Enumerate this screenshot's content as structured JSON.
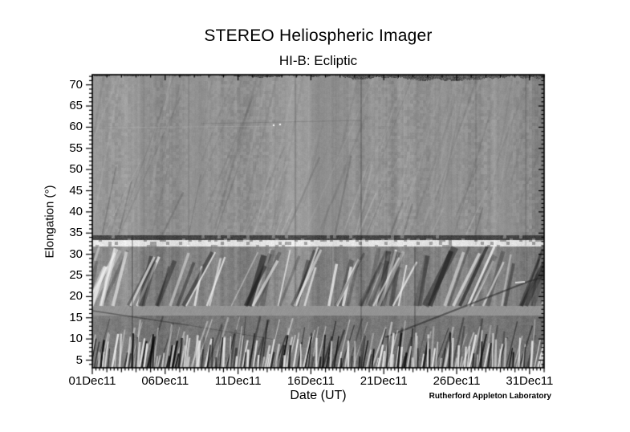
{
  "chart_data": {
    "type": "heatmap",
    "title": "STEREO Heliospheric Imager",
    "subtitle": "HI-B: Ecliptic",
    "xlabel": "Date (UT)",
    "ylabel": "Elongation (°)",
    "credit": "Rutherford Appleton Laboratory",
    "x_tick_labels": [
      "01Dec11",
      "06Dec11",
      "11Dec11",
      "16Dec11",
      "21Dec11",
      "26Dec11",
      "31Dec11"
    ],
    "x_tick_days": [
      0,
      5,
      10,
      15,
      20,
      25,
      30
    ],
    "x_range_days": [
      0,
      31
    ],
    "x_minor_tick_hours": 6,
    "y_tick_values": [
      5,
      10,
      15,
      20,
      25,
      30,
      35,
      40,
      45,
      50,
      55,
      60,
      65,
      70
    ],
    "y_minor_tick_deg": 1,
    "y_range_deg": [
      3.2,
      72.4
    ],
    "grid": "off",
    "legend": "none",
    "image_description": "Grayscale running-difference time-elongation J-map from the STEREO HI-B heliospheric imager along the ecliptic for December 2011.",
    "features": [
      "bright stationary horizontal band near 33 deg elongation spanning all dates",
      "dark horizontal lane near 34-35 deg elongation just above the bright band",
      "instrument field-of-view boundary near 17 deg elongation with calm hatched strip below it",
      "dense fan of bright and dark outflow tracks below 17 deg leaning toward later dates with height",
      "alternating bright/dark transient (CME/solar-wind) tracks between 18 and 33 deg",
      "faint steep striations and blocky vertical mottling above 35 deg",
      "thin vertical data-gap stripes at several dates",
      "dark jagged strip along the top edge, heavier toward the right",
      "shallow dark rising track crossing from ~15 deg to ~30 deg late in the month"
    ],
    "palette": {
      "background": "#ffffff",
      "mid_gray": "#8f8f8f",
      "bright_band": "#efefef",
      "dark_lane": "#3c3c3c",
      "ink": "#000000"
    }
  }
}
